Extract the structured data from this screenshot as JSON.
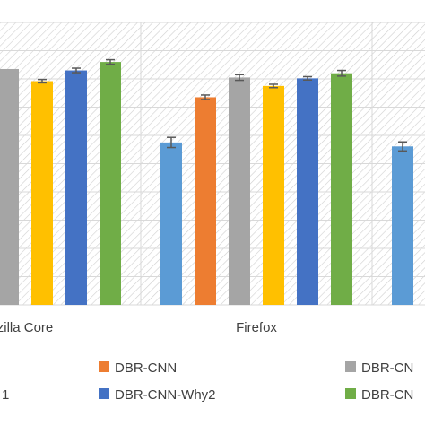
{
  "chart_data": {
    "type": "bar",
    "title": "",
    "xlabel": "",
    "ylabel": "",
    "categories": [
      "zilla Core",
      "Firefox",
      ""
    ],
    "ylim": [
      0,
      1
    ],
    "grid": true,
    "legend_placement": "bottom",
    "series": [
      {
        "name": "1",
        "color": "#5b9bd5",
        "values": [
          null,
          0.575,
          0.561
        ],
        "errors": [
          null,
          0.018,
          0.016
        ]
      },
      {
        "name": "DBR-CNN",
        "color": "#ed7d31",
        "values": [
          null,
          0.735,
          null
        ],
        "errors": [
          null,
          0.008,
          null
        ]
      },
      {
        "name": "DBR-CN",
        "color": "#a5a5a5",
        "values": [
          0.835,
          0.805,
          null
        ],
        "errors": [
          null,
          0.01,
          null
        ]
      },
      {
        "name": "",
        "color": "#ffc000",
        "values": [
          0.792,
          0.775,
          null
        ],
        "errors": [
          0.006,
          0.006,
          null
        ]
      },
      {
        "name": "DBR-CNN-Why2",
        "color": "#4472c4",
        "values": [
          0.83,
          0.802,
          null
        ],
        "errors": [
          0.008,
          0.006,
          null
        ]
      },
      {
        "name": "DBR-CN",
        "color": "#70ad47",
        "values": [
          0.86,
          0.82,
          null
        ],
        "errors": [
          0.008,
          0.01,
          null
        ]
      }
    ]
  }
}
